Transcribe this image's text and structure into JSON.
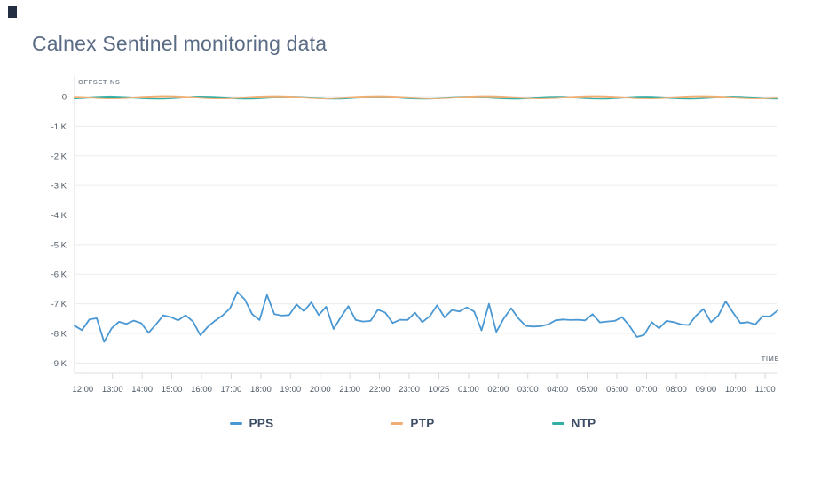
{
  "page": {
    "title": "Calnex Sentinel monitoring data"
  },
  "chart_data": {
    "type": "line",
    "title": "Calnex Sentinel monitoring data",
    "ylabel": "OFFSET NS",
    "xlabel": "TIME",
    "grid": true,
    "legend_position": "bottom",
    "ylim": [
      -9350,
      720
    ],
    "y_unit": "ns",
    "y_tick_labels": [
      "0",
      "-1 K",
      "-2 K",
      "-3 K",
      "-4 K",
      "-5 K",
      "-6 K",
      "-7 K",
      "-8 K",
      "-9 K"
    ],
    "y_tick_values": [
      0,
      -1000,
      -2000,
      -3000,
      -4000,
      -5000,
      -6000,
      -7000,
      -8000,
      -9000
    ],
    "x_tick_labels": [
      "12:00",
      "13:00",
      "14:00",
      "15:00",
      "16:00",
      "17:00",
      "18:00",
      "19:00",
      "20:00",
      "21:00",
      "22:00",
      "23:00",
      "10/25",
      "01:00",
      "02:00",
      "03:00",
      "04:00",
      "05:00",
      "06:00",
      "07:00",
      "08:00",
      "09:00",
      "10:00",
      "11:00"
    ],
    "points_per_hour": 4,
    "series": [
      {
        "name": "PPS",
        "color": "#4a98d3",
        "values": [
          -7740,
          -7890,
          -7530,
          -7490,
          -8290,
          -7830,
          -7610,
          -7680,
          -7570,
          -7650,
          -7980,
          -7700,
          -7390,
          -7450,
          -7560,
          -7390,
          -7600,
          -8060,
          -7780,
          -7570,
          -7400,
          -7160,
          -6600,
          -6850,
          -7350,
          -7550,
          -6700,
          -7350,
          -7400,
          -7380,
          -7020,
          -7250,
          -6950,
          -7380,
          -7100,
          -7850,
          -7450,
          -7080,
          -7550,
          -7600,
          -7580,
          -7200,
          -7300,
          -7650,
          -7540,
          -7550,
          -7300,
          -7620,
          -7420,
          -7050,
          -7460,
          -7210,
          -7260,
          -7120,
          -7260,
          -7900,
          -7000,
          -7950,
          -7500,
          -7150,
          -7500,
          -7750,
          -7770,
          -7760,
          -7700,
          -7560,
          -7530,
          -7550,
          -7540,
          -7560,
          -7350,
          -7630,
          -7600,
          -7580,
          -7450,
          -7750,
          -8120,
          -8050,
          -7620,
          -7830,
          -7580,
          -7620,
          -7700,
          -7720,
          -7400,
          -7180,
          -7620,
          -7400,
          -6920,
          -7300,
          -7650,
          -7620,
          -7700,
          -7420,
          -7430,
          -7230
        ]
      },
      {
        "name": "PTP",
        "color": "#efae74",
        "values": [
          -5,
          -15,
          -30,
          -45,
          -55,
          -60,
          -55,
          -45,
          -30,
          -12,
          0,
          10,
          15,
          12,
          5,
          -8,
          -22,
          -38,
          -50,
          -58,
          -60,
          -55,
          -42,
          -28,
          -12,
          0,
          8,
          12,
          10,
          0,
          -15,
          -30,
          -45,
          -55,
          -58,
          -52,
          -40,
          -25,
          -10,
          2,
          10,
          14,
          10,
          2,
          -10,
          -25,
          -40,
          -52,
          -58,
          -56,
          -48,
          -35,
          -20,
          -5,
          5,
          12,
          14,
          8,
          -2,
          -16,
          -32,
          -46,
          -55,
          -58,
          -54,
          -44,
          -30,
          -15,
          -2,
          8,
          13,
          12,
          4,
          -8,
          -24,
          -38,
          -50,
          -57,
          -58,
          -50,
          -38,
          -24,
          -8,
          4,
          12,
          14,
          9,
          0,
          -14,
          -28,
          -42,
          -53,
          -58,
          -55,
          -45,
          -32
        ]
      },
      {
        "name": "NTP",
        "color": "#35aea6",
        "values": [
          -55,
          -45,
          -30,
          -15,
          -5,
          0,
          -8,
          -20,
          -35,
          -50,
          -60,
          -65,
          -62,
          -52,
          -38,
          -22,
          -10,
          -2,
          -5,
          -15,
          -30,
          -45,
          -58,
          -65,
          -62,
          -52,
          -38,
          -24,
          -12,
          -6,
          -10,
          -20,
          -34,
          -48,
          -60,
          -66,
          -62,
          -50,
          -36,
          -22,
          -10,
          -4,
          -8,
          -18,
          -32,
          -46,
          -58,
          -65,
          -63,
          -54,
          -40,
          -26,
          -14,
          -6,
          -8,
          -18,
          -30,
          -44,
          -56,
          -64,
          -64,
          -55,
          -42,
          -28,
          -15,
          -7,
          -9,
          -19,
          -33,
          -47,
          -59,
          -66,
          -61,
          -50,
          -36,
          -22,
          -11,
          -5,
          -9,
          -20,
          -34,
          -48,
          -60,
          -65,
          -60,
          -48,
          -34,
          -20,
          -9,
          -4,
          -10,
          -22,
          -36,
          -50,
          -60,
          -64
        ]
      }
    ]
  }
}
